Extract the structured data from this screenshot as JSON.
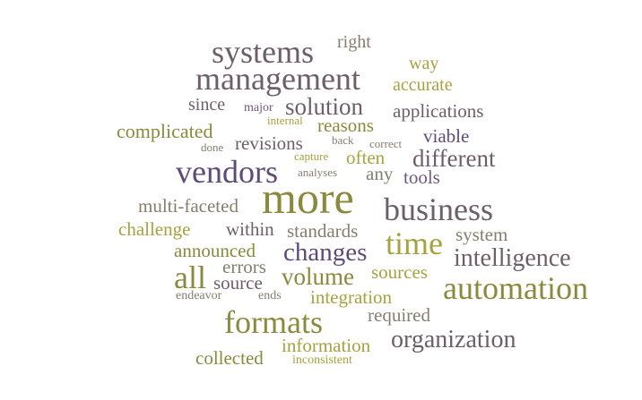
{
  "words": [
    {
      "text": "systems",
      "color": "#6d5f69"
    },
    {
      "text": "right",
      "color": "#857e6e"
    },
    {
      "text": "way",
      "color": "#a6a23f"
    },
    {
      "text": "management",
      "color": "#6d5f69"
    },
    {
      "text": "accurate",
      "color": "#a6a23f"
    },
    {
      "text": "since",
      "color": "#6d5f69"
    },
    {
      "text": "major",
      "color": "#6e5a7e"
    },
    {
      "text": "solution",
      "color": "#6d5f69"
    },
    {
      "text": "applications",
      "color": "#6d5f69"
    },
    {
      "text": "internal",
      "color": "#a6a23f"
    },
    {
      "text": "reasons",
      "color": "#8a8a3e"
    },
    {
      "text": "complicated",
      "color": "#8a8a3e"
    },
    {
      "text": "back",
      "color": "#857e6e"
    },
    {
      "text": "correct",
      "color": "#857e6e"
    },
    {
      "text": "viable",
      "color": "#5e4b7a"
    },
    {
      "text": "revisions",
      "color": "#6d5f69"
    },
    {
      "text": "done",
      "color": "#857e6e"
    },
    {
      "text": "capture",
      "color": "#a6a23f"
    },
    {
      "text": "often",
      "color": "#a6a23f"
    },
    {
      "text": "different",
      "color": "#6d5f69"
    },
    {
      "text": "vendors",
      "color": "#5e4b7a"
    },
    {
      "text": "analyses",
      "color": "#857e6e"
    },
    {
      "text": "any",
      "color": "#857e6e"
    },
    {
      "text": "tools",
      "color": "#6e5a7e"
    },
    {
      "text": "more",
      "color": "#8a8a3e"
    },
    {
      "text": "multi-faceted",
      "color": "#857e6e"
    },
    {
      "text": "business",
      "color": "#6d5f69"
    },
    {
      "text": "challenge",
      "color": "#a6a23f"
    },
    {
      "text": "within",
      "color": "#6d5f69"
    },
    {
      "text": "standards",
      "color": "#857e6e"
    },
    {
      "text": "time",
      "color": "#a6a23f"
    },
    {
      "text": "system",
      "color": "#857e6e"
    },
    {
      "text": "announced",
      "color": "#8a8a3e"
    },
    {
      "text": "changes",
      "color": "#5e4b7a"
    },
    {
      "text": "intelligence",
      "color": "#6d5f69"
    },
    {
      "text": "errors",
      "color": "#857e6e"
    },
    {
      "text": "all",
      "color": "#8a8a3e"
    },
    {
      "text": "sources",
      "color": "#a6a23f"
    },
    {
      "text": "volume",
      "color": "#8a8a3e"
    },
    {
      "text": "source",
      "color": "#6d5f69"
    },
    {
      "text": "automation",
      "color": "#8a8a3e"
    },
    {
      "text": "endeavor",
      "color": "#857e6e"
    },
    {
      "text": "ends",
      "color": "#857e6e"
    },
    {
      "text": "integration",
      "color": "#a6a23f"
    },
    {
      "text": "required",
      "color": "#857e6e"
    },
    {
      "text": "formats",
      "color": "#8a8a3e"
    },
    {
      "text": "organization",
      "color": "#6d5f69"
    },
    {
      "text": "information",
      "color": "#a6a23f"
    },
    {
      "text": "collected",
      "color": "#8a8a3e"
    },
    {
      "text": "inconsistent",
      "color": "#a6a23f"
    }
  ]
}
